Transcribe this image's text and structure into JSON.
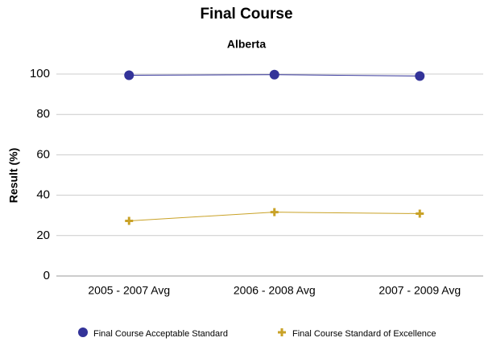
{
  "chart_data": {
    "type": "line",
    "title": "Final Course",
    "subtitle": "Alberta",
    "y_label": "Result (%)",
    "categories": [
      "2005 - 2007 Avg",
      "2006 - 2008 Avg",
      "2007 - 2009 Avg"
    ],
    "series": [
      {
        "name": "Final Course Acceptable Standard",
        "color": "#333399",
        "marker": "circle",
        "values": [
          99.4,
          99.7,
          99.0
        ]
      },
      {
        "name": "Final Course Standard of Excellence",
        "color": "#c9a227",
        "marker": "plus",
        "values": [
          27.3,
          31.6,
          30.9
        ]
      }
    ],
    "ylim": [
      0,
      100
    ],
    "yticks": [
      0,
      20,
      40,
      60,
      80,
      100
    ],
    "grid": true,
    "legend": "bottom"
  }
}
